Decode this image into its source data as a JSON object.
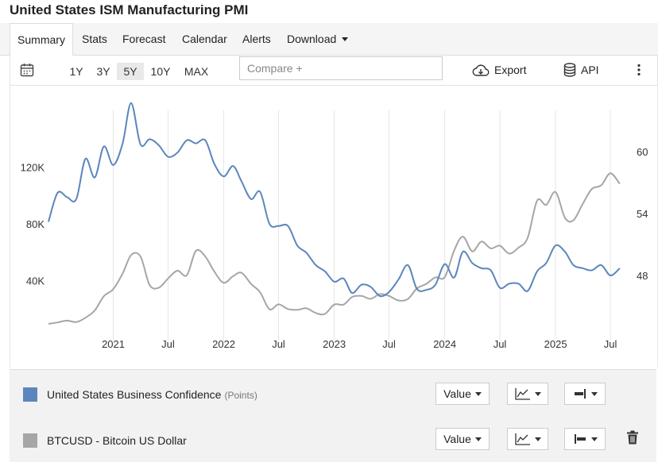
{
  "page": {
    "title": "United States ISM Manufacturing PMI"
  },
  "tabs": [
    {
      "label": "Summary",
      "active": true
    },
    {
      "label": "Stats"
    },
    {
      "label": "Forecast"
    },
    {
      "label": "Calendar"
    },
    {
      "label": "Alerts"
    },
    {
      "label": "Download",
      "has_dropdown": true
    }
  ],
  "toolbar": {
    "ranges": [
      {
        "label": "1Y"
      },
      {
        "label": "3Y"
      },
      {
        "label": "5Y",
        "active": true
      },
      {
        "label": "10Y"
      },
      {
        "label": "MAX"
      }
    ],
    "compare_placeholder": "Compare +",
    "export_label": "Export",
    "api_label": "API"
  },
  "legend": {
    "items": [
      {
        "name": "United States Business Confidence",
        "unit": "(Points)",
        "color": "#5b86bd",
        "value_select": "Value"
      },
      {
        "name": "BTCUSD - Bitcoin US Dollar",
        "unit": "",
        "color": "#a6a6a6",
        "value_select": "Value"
      }
    ]
  },
  "chart_data": {
    "type": "line",
    "x_ticks": [
      "2021",
      "Jul",
      "2022",
      "Jul",
      "2023",
      "Jul",
      "2024",
      "Jul",
      "2025",
      "Jul"
    ],
    "left_axis": {
      "ticks": [
        "40K",
        "80K",
        "120K"
      ],
      "range": [
        0,
        160000
      ]
    },
    "right_axis": {
      "ticks": [
        "48",
        "54",
        "60"
      ],
      "range": [
        42,
        64
      ]
    },
    "grid": "vertical",
    "series": [
      {
        "name": "United States Business Confidence",
        "axis": "right",
        "color": "#5b86bd",
        "x": [
          "2020-06",
          "2020-07",
          "2020-08",
          "2020-09",
          "2020-10",
          "2020-11",
          "2020-12",
          "2021-01",
          "2021-02",
          "2021-03",
          "2021-04",
          "2021-05",
          "2021-06",
          "2021-07",
          "2021-08",
          "2021-09",
          "2021-10",
          "2021-11",
          "2021-12",
          "2022-01",
          "2022-02",
          "2022-03",
          "2022-04",
          "2022-05",
          "2022-06",
          "2022-07",
          "2022-08",
          "2022-09",
          "2022-10",
          "2022-11",
          "2022-12",
          "2023-01",
          "2023-02",
          "2023-03",
          "2023-04",
          "2023-05",
          "2023-06",
          "2023-07",
          "2023-08",
          "2023-09",
          "2023-10",
          "2023-11",
          "2023-12",
          "2024-01",
          "2024-02",
          "2024-03",
          "2024-04",
          "2024-05",
          "2024-06",
          "2024-07",
          "2024-08",
          "2024-09",
          "2024-10",
          "2024-11",
          "2024-12",
          "2025-01",
          "2025-02",
          "2025-03",
          "2025-04",
          "2025-05",
          "2025-06",
          "2025-07",
          "2025-08"
        ],
        "values": [
          53.2,
          56.0,
          55.6,
          55.4,
          59.3,
          57.5,
          60.5,
          58.7,
          60.8,
          64.7,
          60.7,
          61.2,
          60.6,
          59.5,
          59.9,
          61.1,
          60.8,
          61.1,
          58.8,
          57.6,
          58.6,
          57.1,
          55.4,
          56.1,
          53.0,
          52.8,
          52.8,
          50.9,
          50.2,
          49.0,
          48.4,
          47.4,
          47.7,
          46.3,
          47.1,
          46.9,
          46.0,
          46.4,
          47.6,
          49.0,
          46.7,
          46.6,
          47.1,
          49.1,
          47.8,
          50.3,
          49.2,
          48.7,
          48.5,
          46.8,
          47.2,
          47.2,
          46.5,
          48.4,
          49.2,
          50.9,
          50.3,
          49.0,
          48.7,
          48.5,
          49.0,
          48.0,
          48.7
        ]
      },
      {
        "name": "BTCUSD - Bitcoin US Dollar",
        "axis": "left",
        "color": "#a6a6a6",
        "x": [
          "2020-06",
          "2020-07",
          "2020-08",
          "2020-09",
          "2020-10",
          "2020-11",
          "2020-12",
          "2021-01",
          "2021-02",
          "2021-03",
          "2021-04",
          "2021-05",
          "2021-06",
          "2021-07",
          "2021-08",
          "2021-09",
          "2021-10",
          "2021-11",
          "2021-12",
          "2022-01",
          "2022-02",
          "2022-03",
          "2022-04",
          "2022-05",
          "2022-06",
          "2022-07",
          "2022-08",
          "2022-09",
          "2022-10",
          "2022-11",
          "2022-12",
          "2023-01",
          "2023-02",
          "2023-03",
          "2023-04",
          "2023-05",
          "2023-06",
          "2023-07",
          "2023-08",
          "2023-09",
          "2023-10",
          "2023-11",
          "2023-12",
          "2024-01",
          "2024-02",
          "2024-03",
          "2024-04",
          "2024-05",
          "2024-06",
          "2024-07",
          "2024-08",
          "2024-09",
          "2024-10",
          "2024-11",
          "2024-12",
          "2025-01",
          "2025-02",
          "2025-03",
          "2025-04",
          "2025-05",
          "2025-06",
          "2025-07",
          "2025-08"
        ],
        "values": [
          9500,
          10500,
          11800,
          10800,
          13800,
          19000,
          29000,
          34000,
          45000,
          58000,
          57000,
          37000,
          35000,
          41500,
          47000,
          43800,
          61000,
          57000,
          46300,
          38500,
          43200,
          45500,
          37700,
          31800,
          19800,
          23300,
          20000,
          19400,
          20500,
          17200,
          16500,
          23100,
          23100,
          28500,
          29200,
          27200,
          30500,
          29200,
          26000,
          27000,
          34500,
          37700,
          42300,
          42500,
          61200,
          71000,
          60600,
          67500,
          62700,
          64600,
          59000,
          63300,
          70200,
          96400,
          93400,
          102400,
          84300,
          82500,
          94200,
          104600,
          107200,
          115700,
          108200
        ]
      }
    ]
  }
}
